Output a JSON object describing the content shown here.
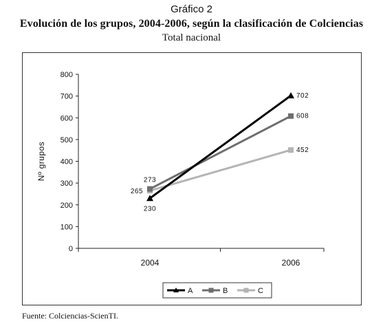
{
  "figure": {
    "label": "Gráfico 2",
    "title": "Evolución de los grupos, 2004-2006, según la clasificación de Colciencias",
    "subtitle": "Total nacional",
    "source": "Fuente: Colciencias-ScienTI."
  },
  "chart_data": {
    "type": "line",
    "x": [
      "2004",
      "2006"
    ],
    "ylabel": "Nº grupos",
    "xlabel": "",
    "ylim": [
      0,
      800
    ],
    "yticks": [
      0,
      100,
      200,
      300,
      400,
      500,
      600,
      700,
      800
    ],
    "grid": false,
    "legend_position": "bottom",
    "series": [
      {
        "name": "A",
        "values": [
          230,
          702
        ],
        "labels": [
          "230",
          "702"
        ],
        "color": "#000000",
        "marker": "triangle"
      },
      {
        "name": "B",
        "values": [
          273,
          608
        ],
        "labels": [
          "273",
          "608"
        ],
        "color": "#6e6e6e",
        "marker": "square"
      },
      {
        "name": "C",
        "values": [
          265,
          452
        ],
        "labels": [
          "265",
          "452"
        ],
        "color": "#b4b4b4",
        "marker": "square"
      }
    ]
  }
}
